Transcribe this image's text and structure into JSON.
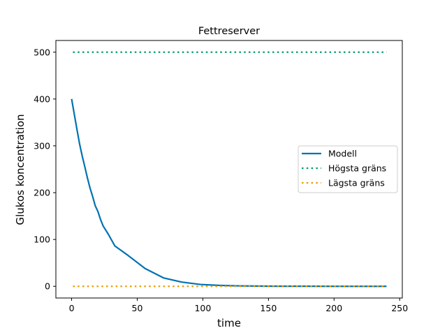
{
  "chart_data": {
    "type": "line",
    "title": "Fettreserver",
    "xlabel": "time",
    "ylabel": "Glukos koncentration",
    "xlim": [
      -12,
      252
    ],
    "ylim": [
      -25,
      525
    ],
    "xticks": [
      0,
      50,
      100,
      150,
      200,
      250
    ],
    "yticks": [
      0,
      100,
      200,
      300,
      400,
      500
    ],
    "grid": false,
    "legend_position": "center-right",
    "series": [
      {
        "name": "Modell",
        "style": "solid",
        "color": "#0072B2",
        "x": [
          0,
          2,
          4,
          6,
          8,
          10,
          12,
          14,
          16,
          18,
          20,
          22,
          24,
          28,
          33,
          43,
          56,
          70,
          84,
          98,
          112,
          126,
          140,
          160,
          180,
          200,
          220,
          240
        ],
        "y": [
          400,
          368,
          336,
          305,
          279,
          256,
          232,
          210,
          192,
          172,
          160,
          143,
          129,
          111,
          86,
          66,
          38,
          18,
          9,
          4,
          2,
          1,
          0.5,
          0.2,
          0.1,
          0,
          0,
          0
        ]
      },
      {
        "name": "Högsta gräns",
        "style": "dotted",
        "color": "#009E73",
        "x": [
          1,
          240
        ],
        "y": [
          500,
          500
        ]
      },
      {
        "name": "Lägsta gräns",
        "style": "dotted",
        "color": "#E69F00",
        "x": [
          1,
          240
        ],
        "y": [
          0,
          0
        ]
      }
    ]
  }
}
